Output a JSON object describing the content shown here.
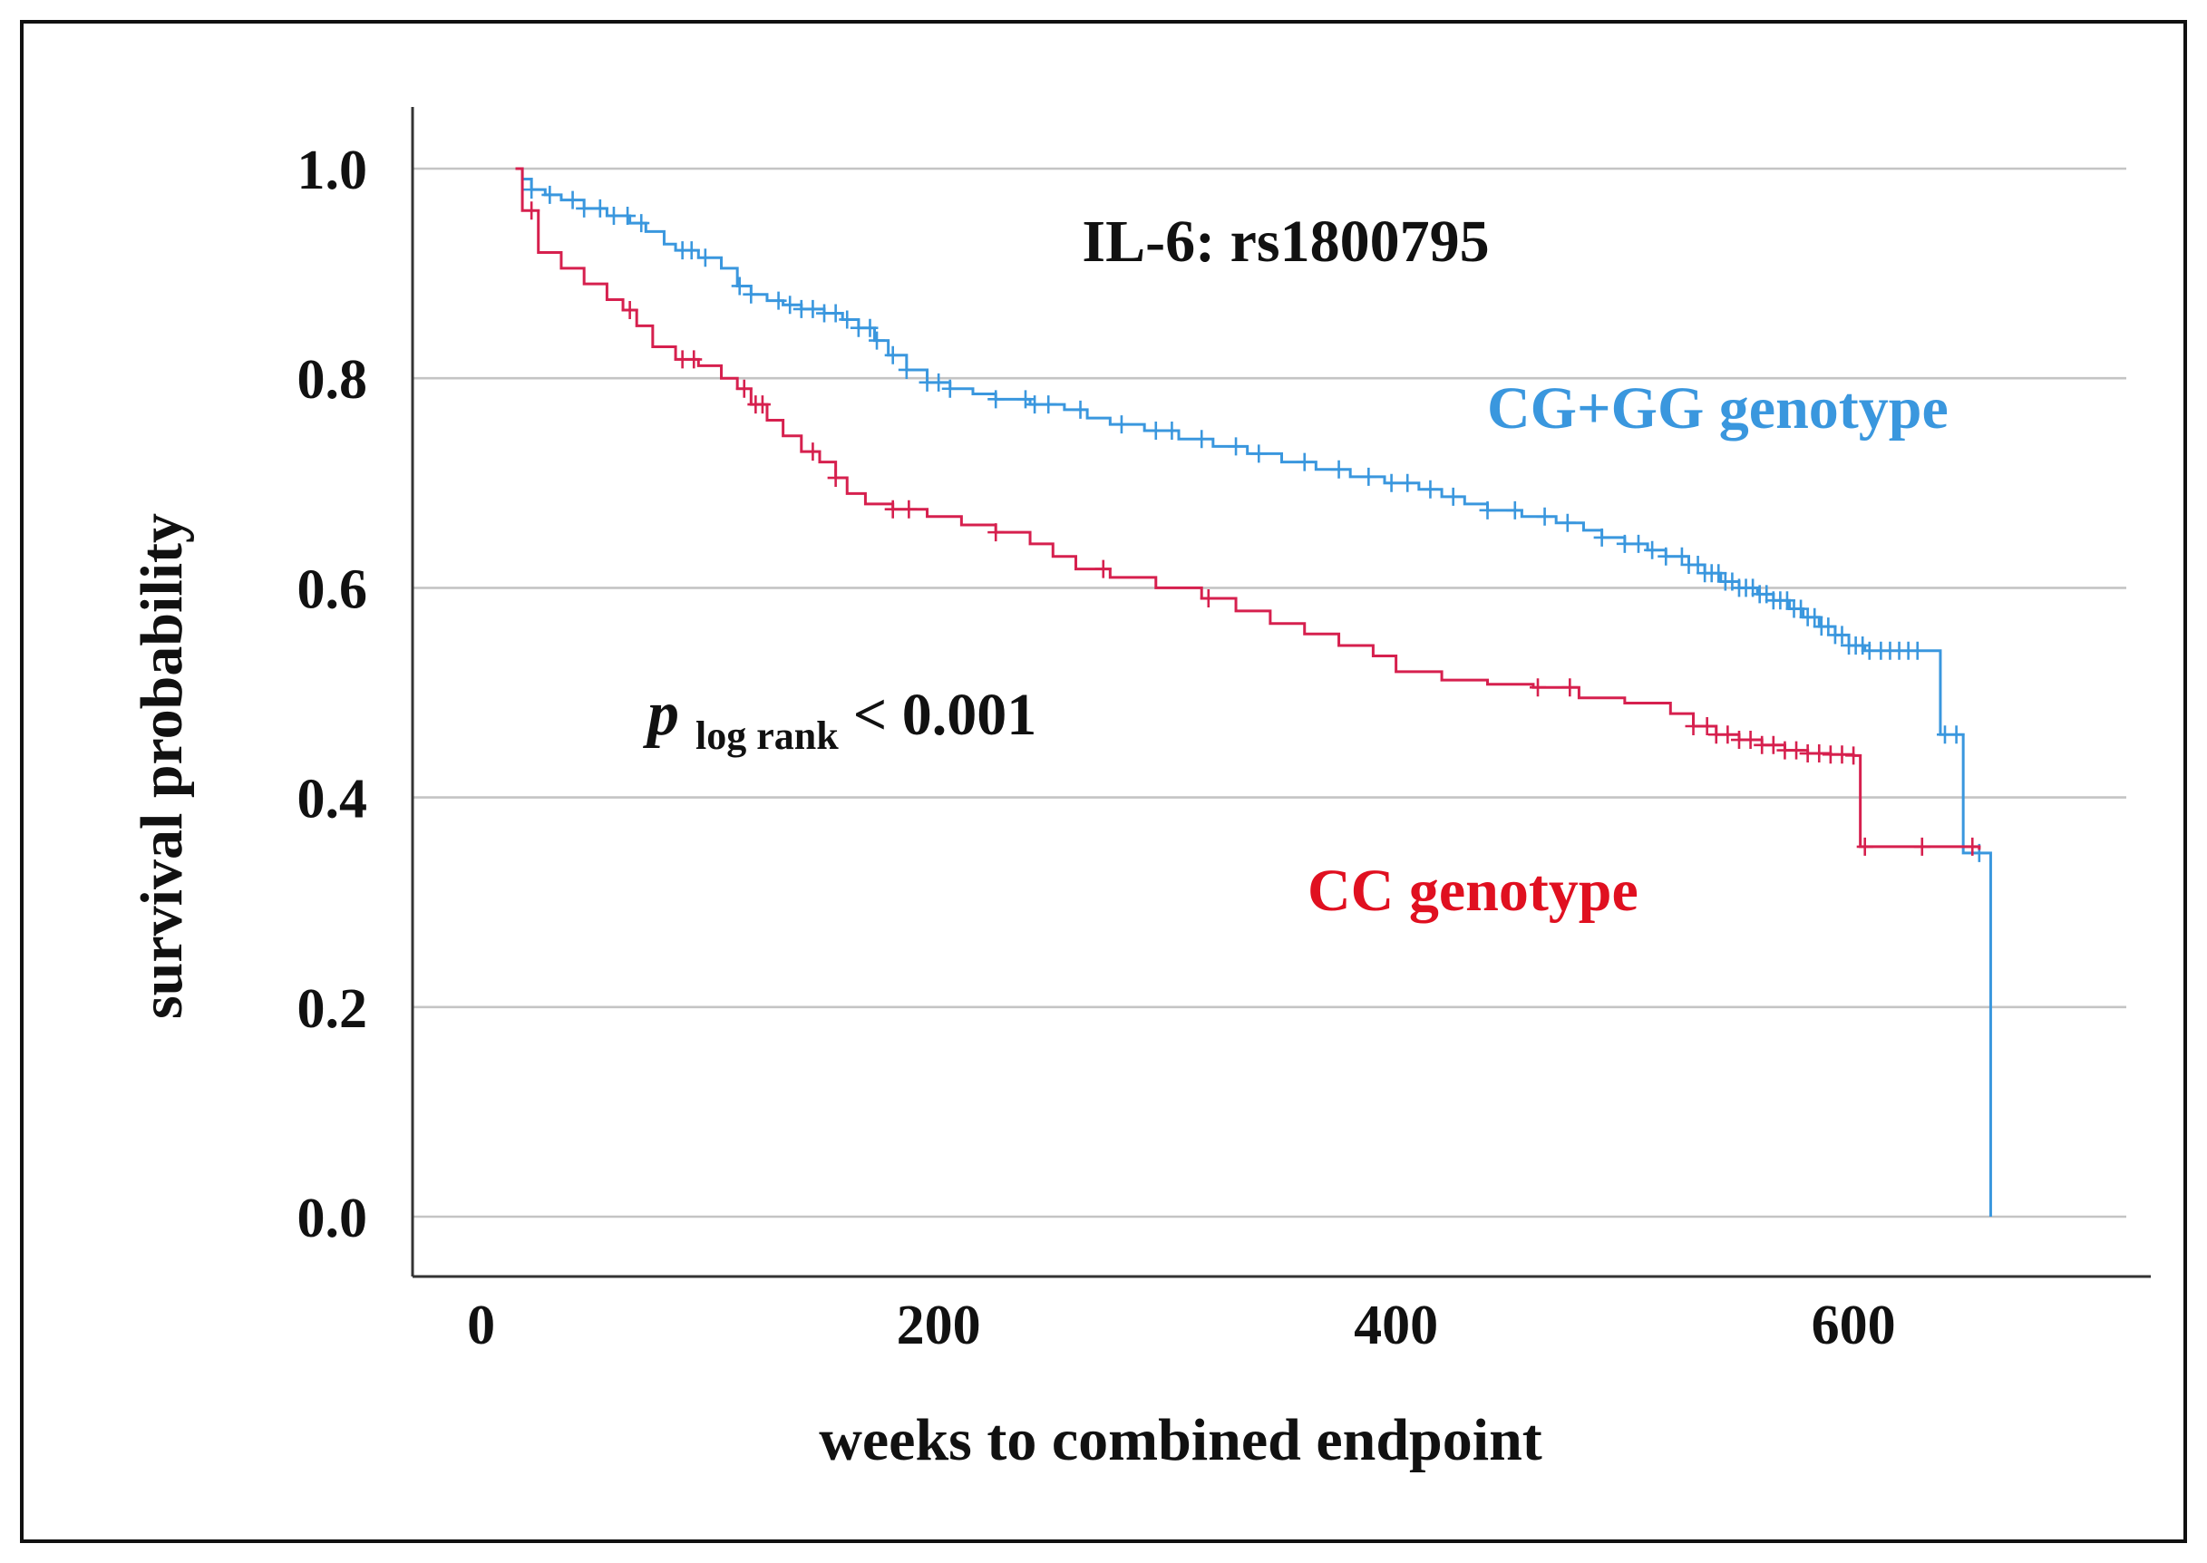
{
  "chart_data": {
    "type": "line",
    "subtype": "kaplan-meier",
    "title": "IL-6: rs1800795",
    "xlabel": "weeks to combined endpoint",
    "ylabel": "survival probability",
    "xlim": [
      -30,
      730
    ],
    "ylim": [
      0,
      1.0
    ],
    "x_ticks": [
      "0",
      "200",
      "400",
      "600"
    ],
    "x_tick_values": [
      0,
      200,
      400,
      600
    ],
    "y_ticks": [
      "0.0",
      "0.2",
      "0.4",
      "0.6",
      "0.8",
      "1.0"
    ],
    "y_tick_values": [
      0.0,
      0.2,
      0.4,
      0.6,
      0.8,
      1.0
    ],
    "grid": "horizontal",
    "pvalue": {
      "symbol": "p",
      "subscript": "log rank",
      "text": "< 0.001"
    },
    "series": [
      {
        "name": "CG+GG genotype",
        "color": "#3a97de",
        "points": [
          [
            15,
            1.0
          ],
          [
            18,
            0.99
          ],
          [
            22,
            0.98
          ],
          [
            28,
            0.975
          ],
          [
            35,
            0.97
          ],
          [
            45,
            0.962
          ],
          [
            55,
            0.955
          ],
          [
            65,
            0.948
          ],
          [
            72,
            0.94
          ],
          [
            80,
            0.928
          ],
          [
            85,
            0.922
          ],
          [
            95,
            0.915
          ],
          [
            105,
            0.905
          ],
          [
            112,
            0.888
          ],
          [
            118,
            0.88
          ],
          [
            125,
            0.874
          ],
          [
            132,
            0.87
          ],
          [
            140,
            0.866
          ],
          [
            150,
            0.862
          ],
          [
            158,
            0.856
          ],
          [
            165,
            0.848
          ],
          [
            172,
            0.836
          ],
          [
            178,
            0.822
          ],
          [
            186,
            0.808
          ],
          [
            195,
            0.796
          ],
          [
            205,
            0.79
          ],
          [
            215,
            0.785
          ],
          [
            225,
            0.78
          ],
          [
            240,
            0.775
          ],
          [
            255,
            0.77
          ],
          [
            265,
            0.762
          ],
          [
            275,
            0.756
          ],
          [
            290,
            0.75
          ],
          [
            305,
            0.742
          ],
          [
            320,
            0.735
          ],
          [
            335,
            0.728
          ],
          [
            350,
            0.72
          ],
          [
            365,
            0.713
          ],
          [
            380,
            0.706
          ],
          [
            395,
            0.7
          ],
          [
            410,
            0.694
          ],
          [
            420,
            0.687
          ],
          [
            430,
            0.68
          ],
          [
            440,
            0.674
          ],
          [
            455,
            0.668
          ],
          [
            470,
            0.662
          ],
          [
            482,
            0.655
          ],
          [
            490,
            0.648
          ],
          [
            500,
            0.642
          ],
          [
            510,
            0.636
          ],
          [
            518,
            0.63
          ],
          [
            528,
            0.622
          ],
          [
            535,
            0.614
          ],
          [
            542,
            0.606
          ],
          [
            550,
            0.6
          ],
          [
            558,
            0.594
          ],
          [
            565,
            0.588
          ],
          [
            572,
            0.58
          ],
          [
            578,
            0.572
          ],
          [
            585,
            0.563
          ],
          [
            592,
            0.555
          ],
          [
            598,
            0.545
          ],
          [
            605,
            0.54
          ],
          [
            618,
            0.54
          ],
          [
            630,
            0.54
          ],
          [
            635,
            0.54
          ],
          [
            638,
            0.46
          ],
          [
            646,
            0.46
          ],
          [
            648,
            0.347
          ],
          [
            656,
            0.347
          ],
          [
            660,
            0.347
          ],
          [
            660,
            0.0
          ]
        ],
        "censored_x": [
          22,
          30,
          40,
          45,
          52,
          58,
          64,
          70,
          88,
          92,
          98,
          113,
          118,
          130,
          135,
          140,
          145,
          150,
          155,
          160,
          165,
          170,
          173,
          180,
          186,
          195,
          200,
          205,
          225,
          238,
          242,
          248,
          262,
          280,
          295,
          302,
          315,
          330,
          340,
          360,
          375,
          388,
          398,
          405,
          415,
          425,
          440,
          452,
          465,
          475,
          490,
          500,
          506,
          512,
          518,
          525,
          528,
          532,
          535,
          538,
          541,
          544,
          547,
          550,
          553,
          556,
          559,
          562,
          565,
          568,
          571,
          574,
          577,
          580,
          583,
          586,
          589,
          592,
          595,
          598,
          601,
          604,
          607,
          612,
          616,
          620,
          624,
          628,
          640,
          645,
          655
        ]
      },
      {
        "name": "CC genotype",
        "color": "#d6204e",
        "points": [
          [
            15,
            1.0
          ],
          [
            18,
            0.96
          ],
          [
            25,
            0.92
          ],
          [
            35,
            0.905
          ],
          [
            45,
            0.89
          ],
          [
            55,
            0.875
          ],
          [
            62,
            0.865
          ],
          [
            68,
            0.85
          ],
          [
            75,
            0.83
          ],
          [
            85,
            0.818
          ],
          [
            95,
            0.812
          ],
          [
            105,
            0.8
          ],
          [
            112,
            0.79
          ],
          [
            118,
            0.775
          ],
          [
            125,
            0.76
          ],
          [
            132,
            0.745
          ],
          [
            140,
            0.73
          ],
          [
            148,
            0.72
          ],
          [
            155,
            0.705
          ],
          [
            160,
            0.69
          ],
          [
            168,
            0.68
          ],
          [
            180,
            0.675
          ],
          [
            195,
            0.668
          ],
          [
            210,
            0.66
          ],
          [
            225,
            0.653
          ],
          [
            240,
            0.642
          ],
          [
            250,
            0.63
          ],
          [
            260,
            0.618
          ],
          [
            275,
            0.61
          ],
          [
            295,
            0.6
          ],
          [
            315,
            0.59
          ],
          [
            330,
            0.578
          ],
          [
            345,
            0.566
          ],
          [
            360,
            0.556
          ],
          [
            375,
            0.545
          ],
          [
            390,
            0.535
          ],
          [
            400,
            0.52
          ],
          [
            420,
            0.512
          ],
          [
            440,
            0.508
          ],
          [
            460,
            0.505
          ],
          [
            480,
            0.495
          ],
          [
            500,
            0.49
          ],
          [
            520,
            0.48
          ],
          [
            530,
            0.468
          ],
          [
            540,
            0.46
          ],
          [
            550,
            0.455
          ],
          [
            560,
            0.45
          ],
          [
            570,
            0.445
          ],
          [
            580,
            0.442
          ],
          [
            590,
            0.441
          ],
          [
            600,
            0.44
          ],
          [
            603,
            0.44
          ],
          [
            603,
            0.353
          ],
          [
            640,
            0.353
          ],
          [
            650,
            0.353
          ],
          [
            655,
            0.35
          ]
        ],
        "censored_x": [
          22,
          65,
          88,
          93,
          115,
          120,
          123,
          145,
          155,
          180,
          187,
          225,
          272,
          318,
          462,
          476,
          530,
          536,
          540,
          545,
          550,
          555,
          560,
          565,
          570,
          575,
          580,
          585,
          590,
          595,
          600,
          605,
          630,
          652
        ]
      }
    ],
    "annotations": {
      "series_label_1": "CG+GG genotype",
      "series_label_2": "CC genotype"
    }
  }
}
